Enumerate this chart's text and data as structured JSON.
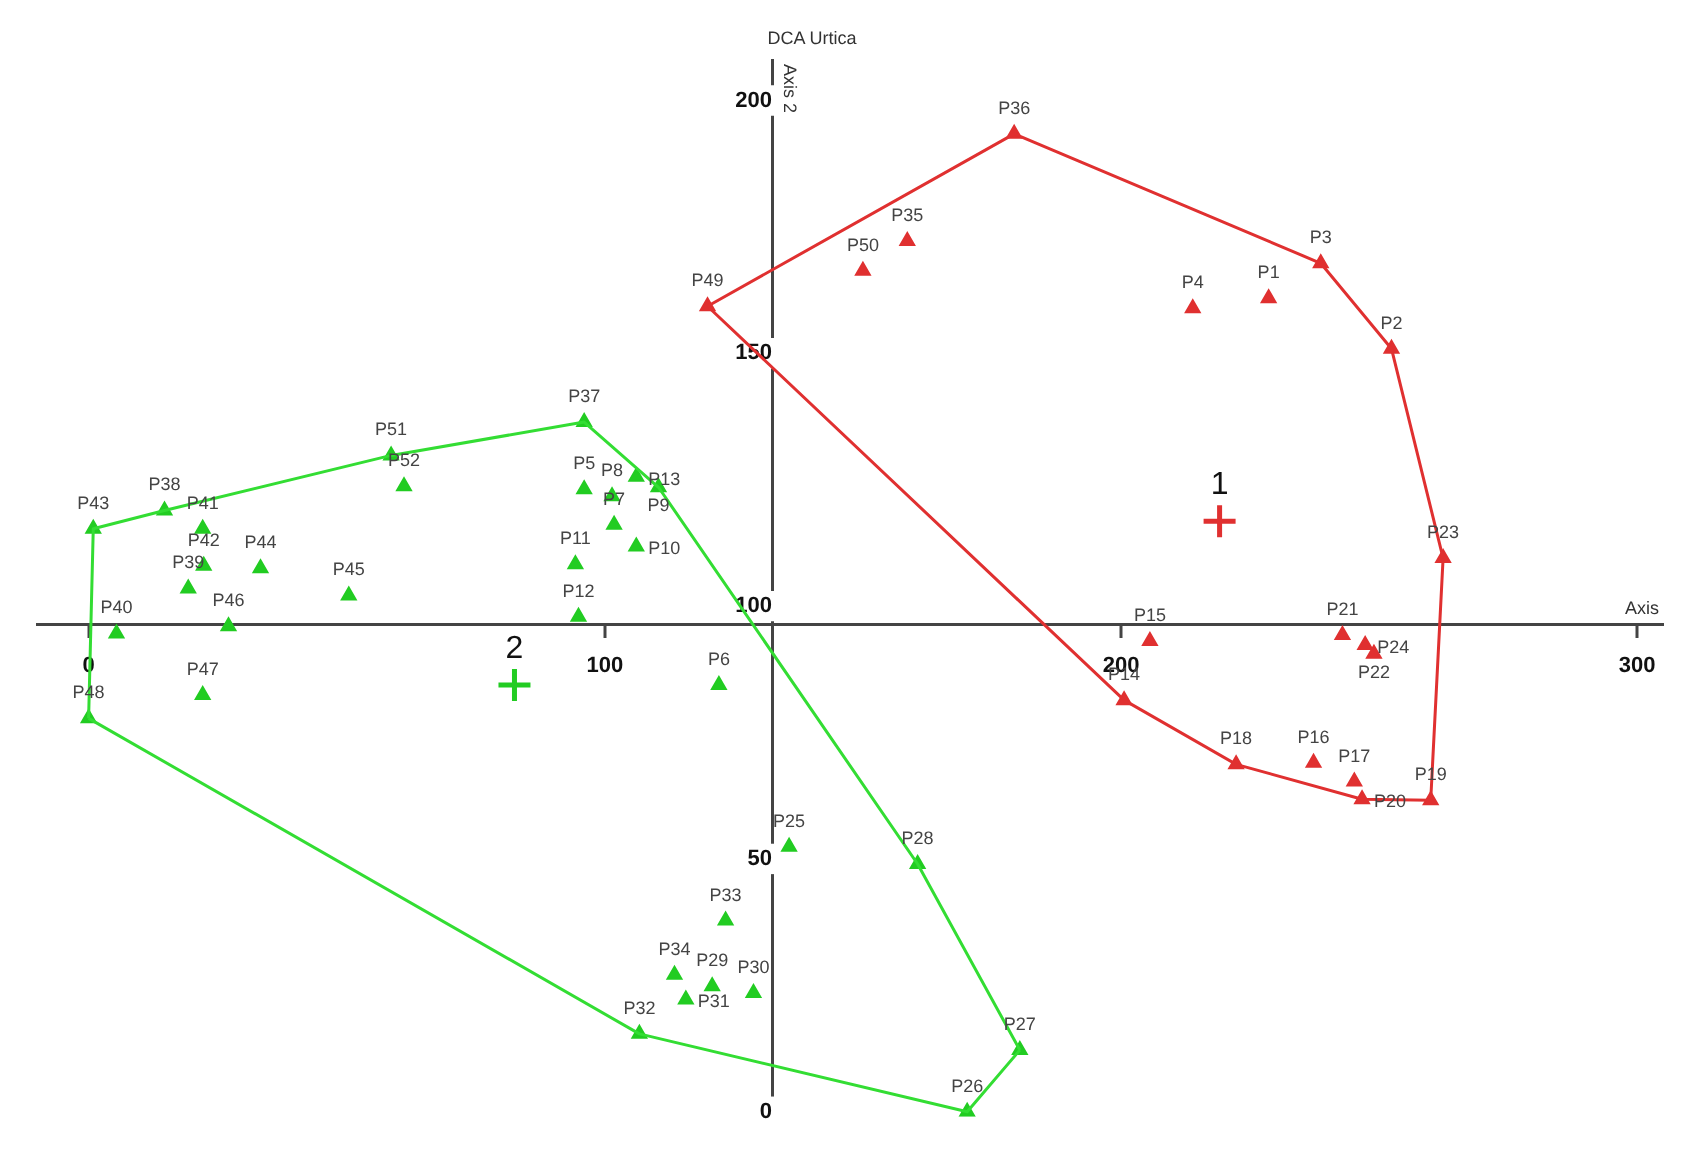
{
  "chart_data": {
    "type": "scatter",
    "title": "DCA Urtica",
    "xlabel": "Axis",
    "ylabel": "Axis 2",
    "xlim": [
      -10,
      305
    ],
    "ylim": [
      -1,
      208
    ],
    "xticks": [
      0,
      100,
      200,
      300
    ],
    "yticks": [
      0,
      50,
      100,
      150,
      200
    ],
    "grid": false,
    "legend": false,
    "marker": "triangle",
    "annotations": [
      {
        "text": "1",
        "x": 219.1,
        "y": 116.8
      },
      {
        "text": "2",
        "x": 82.5,
        "y": 84.4
      }
    ],
    "series": [
      {
        "type": "line",
        "color": "#e03030",
        "marker": "none",
        "x": [
          119.9,
          179.3,
          238.7,
          252.4,
          262.4
        ],
        "values": [
          159.3,
          193.4,
          167.8,
          150.9,
          109.5
        ]
      },
      {
        "type": "line",
        "color": "#e03030",
        "marker": "none",
        "x": [
          119.9,
          200.6,
          222.3,
          246.7,
          260.0,
          262.4
        ],
        "values": [
          159.3,
          81.4,
          68.7,
          61.8,
          61.6,
          109.5
        ]
      },
      {
        "type": "line",
        "color": "#33dd33",
        "marker": "none",
        "x": [
          0,
          0.9,
          14.7,
          58.6,
          96.0,
          110.4,
          160.6,
          180.4
        ],
        "values": [
          77.8,
          115.3,
          118.9,
          129.8,
          136.4,
          123.5,
          49.0,
          12.2
        ]
      },
      {
        "type": "line",
        "color": "#33dd33",
        "marker": "none",
        "x": [
          0,
          106.7,
          170.2,
          180.4
        ],
        "values": [
          77.8,
          15.4,
          0.0,
          12.2
        ]
      },
      {
        "color": "#e03030",
        "x": [
          179.3,
          158.6,
          150.0,
          119.9,
          213.9,
          228.6,
          238.7,
          252.4,
          262.4,
          205.6,
          242.9,
          247.3,
          249.0,
          200.6,
          222.3,
          237.3,
          245.2,
          246.7,
          260.0
        ],
        "values": [
          193.4,
          172.2,
          166.3,
          159.3,
          158.9,
          160.9,
          167.8,
          150.9,
          109.5,
          93.1,
          94.3,
          92.3,
          90.6,
          81.4,
          68.7,
          69.0,
          65.3,
          61.8,
          61.6
        ],
        "value_labels": [
          "P36",
          "P35",
          "P50",
          "P49",
          "P4",
          "P1",
          "P3",
          "P2",
          "P23",
          "P15",
          "P21",
          "P24",
          "P22",
          "P14",
          "P18",
          "P16",
          "P17",
          "P20",
          "P19"
        ]
      },
      {
        "color": "#22cc22",
        "x": [
          0.9,
          14.7,
          22.1,
          22.3,
          19.3,
          33.3,
          50.4,
          27.1,
          5.4,
          58.6,
          61.1,
          96.0,
          96.0,
          101.4,
          106.1,
          110.4,
          101.8,
          106.1,
          94.3,
          94.9,
          22.1,
          0,
          122.1,
          135.7,
          160.6,
          123.4,
          113.5,
          120.8,
          115.7,
          128.8,
          106.7,
          180.4,
          170.2
        ],
        "values": [
          115.3,
          118.9,
          115.3,
          108.0,
          103.5,
          107.5,
          102.1,
          96.0,
          94.6,
          129.8,
          123.7,
          136.4,
          123.1,
          121.7,
          125.6,
          123.5,
          116.1,
          111.8,
          108.3,
          97.9,
          82.4,
          77.8,
          84.4,
          52.4,
          49.0,
          37.8,
          27.1,
          24.8,
          22.2,
          23.5,
          15.4,
          12.2,
          0.0
        ],
        "value_labels": [
          "P43",
          "P38",
          "P41",
          "P42",
          "P39",
          "P44",
          "P45",
          "P46",
          "P40",
          "P51",
          "P52",
          "P37",
          "P5",
          "P8",
          "P13",
          "P9",
          "P7",
          "P10",
          "P11",
          "P12",
          "P47",
          "P48",
          "P6",
          "P25",
          "P28",
          "P33",
          "P34",
          "P29",
          "P31",
          "P30",
          "P32",
          "P27",
          "P26"
        ]
      },
      {
        "type": "scatter",
        "color": "#e03030",
        "marker": "cross",
        "x": [
          219.1
        ],
        "values": [
          116.8
        ]
      },
      {
        "type": "scatter",
        "color": "#22cc22",
        "marker": "cross",
        "x": [
          82.5
        ],
        "values": [
          84.4
        ]
      }
    ]
  }
}
